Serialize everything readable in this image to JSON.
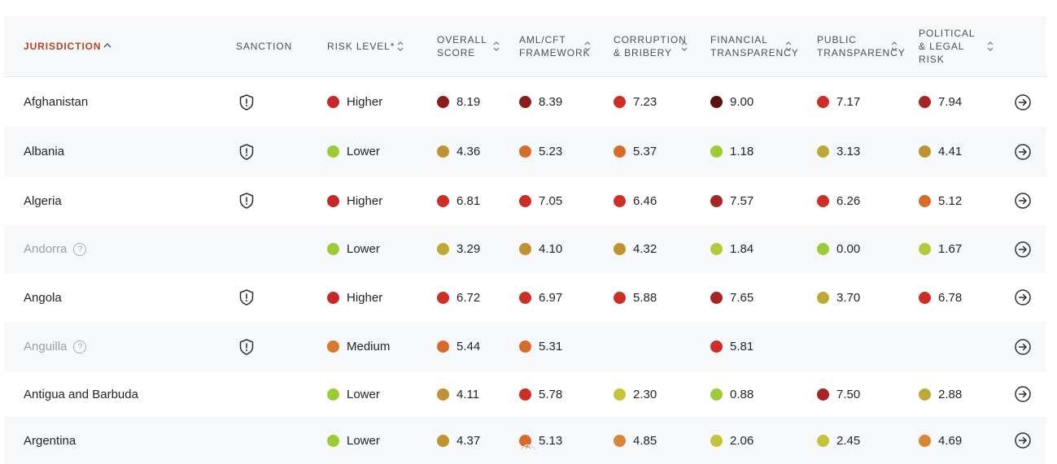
{
  "columns": [
    {
      "key": "jurisdiction",
      "label": "JURISDICTION",
      "active": true
    },
    {
      "key": "sanction",
      "label": "SANCTION"
    },
    {
      "key": "risk",
      "label": "RISK LEVEL*"
    },
    {
      "key": "overall",
      "label": "OVERALL\nSCORE"
    },
    {
      "key": "aml",
      "label": "AML/CFT\nFRAMEWORK"
    },
    {
      "key": "corruption",
      "label": "CORRUPTION\n& BRIBERY"
    },
    {
      "key": "financial",
      "label": "FINANCIAL\nTRANSPARENCY"
    },
    {
      "key": "public",
      "label": "PUBLIC\nTRANSPARENCY"
    },
    {
      "key": "political",
      "label": "POLITICAL\n& LEGAL\nRISK"
    }
  ],
  "colors": {
    "higher": "#c62828",
    "lower": "#9ccc35",
    "medium": "#d67b2a",
    "darkest": "#5d1010",
    "dark": "#8a1c1c",
    "red": "#cf2e26",
    "orange": "#d96b2a",
    "orangeLight": "#d88634",
    "mustard": "#bf9232",
    "olive": "#bfa935",
    "yellowGreen": "#c3c43a",
    "lime": "#9ccc35"
  },
  "rows": [
    {
      "name": "Afghanistan",
      "muted": false,
      "help": false,
      "sanction": true,
      "risk": {
        "label": "Higher",
        "color": "#c62828"
      },
      "scores": [
        {
          "v": "8.19",
          "c": "#8a1c1c"
        },
        {
          "v": "8.39",
          "c": "#8a1c1c"
        },
        {
          "v": "7.23",
          "c": "#cf2e26"
        },
        {
          "v": "9.00",
          "c": "#5d1010"
        },
        {
          "v": "7.17",
          "c": "#cf2e26"
        },
        {
          "v": "7.94",
          "c": "#a82424"
        }
      ]
    },
    {
      "name": "Albania",
      "muted": false,
      "help": false,
      "sanction": true,
      "risk": {
        "label": "Lower",
        "color": "#9ccc35"
      },
      "scores": [
        {
          "v": "4.36",
          "c": "#bf9232"
        },
        {
          "v": "5.23",
          "c": "#d96b2a"
        },
        {
          "v": "5.37",
          "c": "#d96b2a"
        },
        {
          "v": "1.18",
          "c": "#9ccc35"
        },
        {
          "v": "3.13",
          "c": "#bfa935"
        },
        {
          "v": "4.41",
          "c": "#bf9232"
        }
      ]
    },
    {
      "name": "Algeria",
      "muted": false,
      "help": false,
      "sanction": true,
      "risk": {
        "label": "Higher",
        "color": "#c62828"
      },
      "scores": [
        {
          "v": "6.81",
          "c": "#cf2e26"
        },
        {
          "v": "7.05",
          "c": "#cf2e26"
        },
        {
          "v": "6.46",
          "c": "#cf2e26"
        },
        {
          "v": "7.57",
          "c": "#a82424"
        },
        {
          "v": "6.26",
          "c": "#cf2e26"
        },
        {
          "v": "5.12",
          "c": "#d96b2a"
        }
      ]
    },
    {
      "name": "Andorra",
      "muted": true,
      "help": true,
      "sanction": false,
      "risk": {
        "label": "Lower",
        "color": "#9ccc35"
      },
      "scores": [
        {
          "v": "3.29",
          "c": "#bfa935"
        },
        {
          "v": "4.10",
          "c": "#bf9232"
        },
        {
          "v": "4.32",
          "c": "#bf9232"
        },
        {
          "v": "1.84",
          "c": "#b6c83a"
        },
        {
          "v": "0.00",
          "c": "#9ccc35"
        },
        {
          "v": "1.67",
          "c": "#b6c83a"
        }
      ]
    },
    {
      "name": "Angola",
      "muted": false,
      "help": false,
      "sanction": true,
      "risk": {
        "label": "Higher",
        "color": "#c62828"
      },
      "scores": [
        {
          "v": "6.72",
          "c": "#cf2e26"
        },
        {
          "v": "6.97",
          "c": "#cf2e26"
        },
        {
          "v": "5.88",
          "c": "#cf2e26"
        },
        {
          "v": "7.65",
          "c": "#a82424"
        },
        {
          "v": "3.70",
          "c": "#bfa935"
        },
        {
          "v": "6.78",
          "c": "#cf2e26"
        }
      ]
    },
    {
      "name": "Anguilla",
      "muted": true,
      "help": true,
      "sanction": true,
      "risk": {
        "label": "Medium",
        "color": "#d67b2a"
      },
      "scores": [
        {
          "v": "5.44",
          "c": "#d96b2a"
        },
        {
          "v": "5.31",
          "c": "#d96b2a"
        },
        {
          "v": "",
          "c": ""
        },
        {
          "v": "5.81",
          "c": "#cf2e26"
        },
        {
          "v": "",
          "c": ""
        },
        {
          "v": "",
          "c": ""
        }
      ]
    },
    {
      "name": "Antigua and Barbuda",
      "muted": false,
      "help": false,
      "sanction": false,
      "risk": {
        "label": "Lower",
        "color": "#9ccc35"
      },
      "scores": [
        {
          "v": "4.11",
          "c": "#bf9232"
        },
        {
          "v": "5.78",
          "c": "#cf2e26"
        },
        {
          "v": "2.30",
          "c": "#c3c43a"
        },
        {
          "v": "0.88",
          "c": "#9ccc35"
        },
        {
          "v": "7.50",
          "c": "#a82424"
        },
        {
          "v": "2.88",
          "c": "#bfa935"
        }
      ]
    },
    {
      "name": "Argentina",
      "muted": false,
      "help": false,
      "sanction": false,
      "risk": {
        "label": "Lower",
        "color": "#9ccc35"
      },
      "scores": [
        {
          "v": "4.37",
          "c": "#bf9232"
        },
        {
          "v": "5.13",
          "c": "#d96b2a"
        },
        {
          "v": "4.85",
          "c": "#d88634"
        },
        {
          "v": "2.06",
          "c": "#c3c43a"
        },
        {
          "v": "2.45",
          "c": "#c3c43a"
        },
        {
          "v": "4.69",
          "c": "#d88634"
        }
      ]
    }
  ]
}
